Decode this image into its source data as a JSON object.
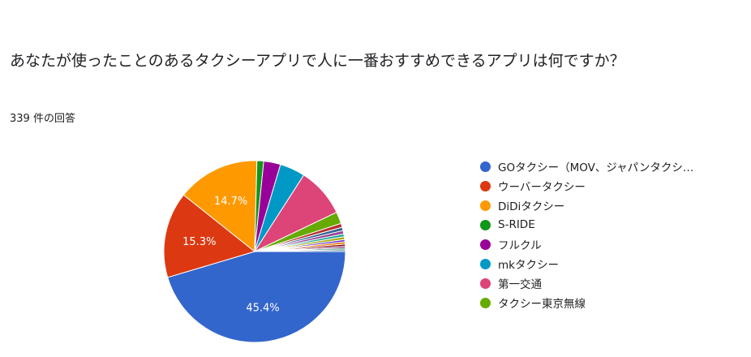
{
  "question": {
    "title": "あなたが使ったことのあるタクシーアプリで人に一番おすすめできるアプリは何ですか？",
    "response_count": "339 件の回答"
  },
  "chart_data": {
    "type": "pie",
    "title": "あなたが使ったことのあるタクシーアプリで人に一番おすすめできるアプリは何ですか？",
    "responses": 339,
    "legend_position": "right",
    "slices": [
      {
        "label": "GOタクシー（MOV、ジャパンタクシ…",
        "value": 45.4,
        "color": "#3366cc",
        "value_label": "45.4%"
      },
      {
        "label": "ウーバータクシー",
        "value": 15.3,
        "color": "#dc3912",
        "value_label": "15.3%"
      },
      {
        "label": "DiDiタクシー",
        "value": 14.7,
        "color": "#ff9900",
        "value_label": "14.7%"
      },
      {
        "label": "S-RIDE",
        "value": 1.2,
        "color": "#109618",
        "value_label": ""
      },
      {
        "label": "フルクル",
        "value": 3.0,
        "color": "#990099",
        "value_label": ""
      },
      {
        "label": "mkタクシー",
        "value": 4.5,
        "color": "#0099c6",
        "value_label": ""
      },
      {
        "label": "第一交通",
        "value": 8.8,
        "color": "#dd4477",
        "value_label": ""
      },
      {
        "label": "タクシー東京無線",
        "value": 2.1,
        "color": "#66aa00",
        "value_label": ""
      },
      {
        "label": "",
        "value": 0.7,
        "color": "#b82e2e",
        "value_label": ""
      },
      {
        "label": "",
        "value": 0.6,
        "color": "#316395",
        "value_label": ""
      },
      {
        "label": "",
        "value": 0.6,
        "color": "#994499",
        "value_label": ""
      },
      {
        "label": "",
        "value": 0.5,
        "color": "#22aa99",
        "value_label": ""
      },
      {
        "label": "",
        "value": 0.5,
        "color": "#aaaa11",
        "value_label": ""
      },
      {
        "label": "",
        "value": 0.4,
        "color": "#6633cc",
        "value_label": ""
      },
      {
        "label": "",
        "value": 0.4,
        "color": "#e67300",
        "value_label": ""
      },
      {
        "label": "",
        "value": 0.4,
        "color": "#8b0707",
        "value_label": ""
      },
      {
        "label": "",
        "value": 0.3,
        "color": "#651067",
        "value_label": ""
      },
      {
        "label": "",
        "value": 0.3,
        "color": "#329262",
        "value_label": ""
      },
      {
        "label": "",
        "value": 0.3,
        "color": "#5574a6",
        "value_label": ""
      }
    ]
  }
}
